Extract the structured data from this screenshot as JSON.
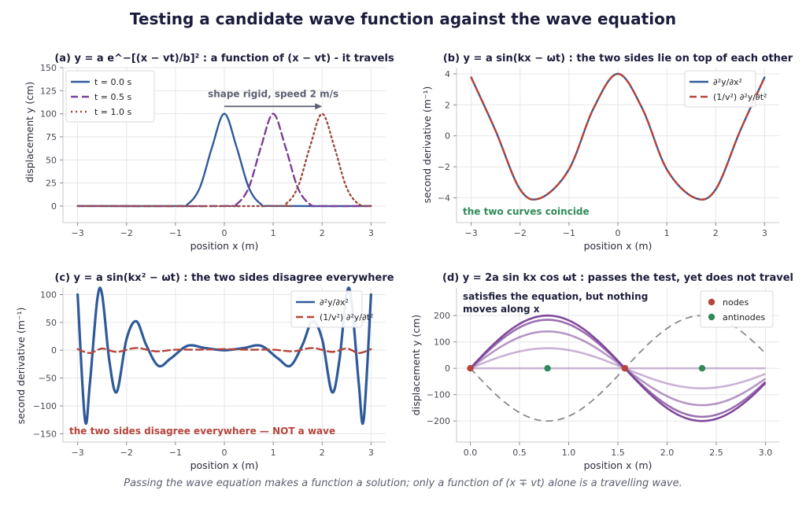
{
  "title": "Testing a candidate wave function against the wave equation",
  "footer": "Passing the wave equation makes a function a solution; only a function of (x ∓ vt) alone is a travelling wave.",
  "colors": {
    "blue": "#2f5a9a",
    "purple": "#7a3f96",
    "brown": "#9b4a3c",
    "red": "#b5443a",
    "green": "#2e8b57",
    "gray": "#8a8a8a",
    "grid": "#e6e6ea"
  },
  "chart_data": [
    {
      "id": "a",
      "type": "line",
      "title": "(a)  y = a e^−[(x − vt)/b]² : a function of (x − vt) - it travels",
      "xlabel": "position x (m)",
      "ylabel": "displacement y (cm)",
      "xlim": [
        -3.3,
        3.3
      ],
      "ylim": [
        -18,
        150
      ],
      "xticks": [
        -3,
        -2,
        -1,
        0,
        1,
        2,
        3
      ],
      "yticks": [
        0,
        25,
        50,
        75,
        100,
        125,
        150
      ],
      "grid": true,
      "legend_position": "top-left",
      "series": [
        {
          "name": "t = 0.0 s",
          "style": "solid",
          "color": "#2f5a9a",
          "x": [
            -3,
            -1,
            -0.75,
            -0.5,
            -0.25,
            0,
            0.25,
            0.5,
            0.75,
            1,
            3
          ],
          "y": [
            0,
            0,
            2,
            20,
            64,
            100,
            64,
            20,
            2,
            0,
            0
          ]
        },
        {
          "name": "t = 0.5 s",
          "style": "dashed",
          "color": "#7a3f96",
          "x": [
            -3,
            0,
            0.25,
            0.5,
            0.75,
            1,
            1.25,
            1.5,
            1.75,
            2,
            3
          ],
          "y": [
            0,
            0,
            2,
            20,
            64,
            100,
            64,
            20,
            2,
            0,
            0
          ]
        },
        {
          "name": "t = 1.0 s",
          "style": "dotted",
          "color": "#9b4a3c",
          "x": [
            -3,
            1,
            1.25,
            1.5,
            1.75,
            2,
            2.25,
            2.5,
            2.75,
            3
          ],
          "y": [
            0,
            0,
            2,
            20,
            64,
            100,
            64,
            20,
            2,
            0
          ]
        }
      ],
      "annotations": [
        {
          "text": "shape rigid, speed 2 m/s",
          "arrow_from_x": 0,
          "arrow_to_x": 2,
          "y": 108
        }
      ]
    },
    {
      "id": "b",
      "type": "line",
      "title": "(b)  y = a sin(kx − ωt) : the two sides lie on top of each other",
      "xlabel": "position x (m)",
      "ylabel": "second derivative (m⁻¹)",
      "xlim": [
        -3.3,
        3.3
      ],
      "ylim": [
        -5.6,
        4.4
      ],
      "xticks": [
        -3,
        -2,
        -1,
        0,
        1,
        2,
        3
      ],
      "yticks": [
        -4,
        -2,
        0,
        2,
        4
      ],
      "grid": true,
      "legend_position": "top-right",
      "series": [
        {
          "name": "∂²y/∂x²",
          "style": "solid",
          "color": "#2f5a9a",
          "x": [
            -3,
            -2.5,
            -2,
            -1.57,
            -1,
            -0.5,
            0,
            0.5,
            1,
            1.57,
            2,
            2.5,
            3
          ],
          "y": [
            3.77,
            0.32,
            -3.46,
            -4.0,
            -2.16,
            1.76,
            4.0,
            1.76,
            -2.16,
            -4.0,
            -3.46,
            0.32,
            3.77
          ]
        },
        {
          "name": "(1/v²) ∂²y/∂t²",
          "style": "dashed",
          "color": "#b5443a",
          "x": [
            -3,
            -2.5,
            -2,
            -1.57,
            -1,
            -0.5,
            0,
            0.5,
            1,
            1.57,
            2,
            2.5,
            3
          ],
          "y": [
            3.77,
            0.32,
            -3.46,
            -4.0,
            -2.16,
            1.76,
            4.0,
            1.76,
            -2.16,
            -4.0,
            -3.46,
            0.32,
            3.77
          ]
        }
      ],
      "annotations": [
        {
          "text": "the two curves coincide"
        }
      ]
    },
    {
      "id": "c",
      "type": "line",
      "title": "(c)  y = a sin(kx² − ωt) : the two sides disagree everywhere",
      "xlabel": "position x (m)",
      "ylabel": "second derivative (m⁻¹)",
      "xlim": [
        -3.3,
        3.3
      ],
      "ylim": [
        -165,
        112
      ],
      "xticks": [
        -3,
        -2,
        -1,
        0,
        1,
        2,
        3
      ],
      "yticks": [
        -150,
        -100,
        -50,
        0,
        50,
        100
      ],
      "grid": true,
      "legend_position": "top-right",
      "series": [
        {
          "name": "∂²y/∂x²",
          "style": "solid",
          "color": "#2f5a9a",
          "x": [
            -3,
            -2.85,
            -2.75,
            -2.6,
            -2.5,
            -2.35,
            -2.2,
            -2.0,
            -1.8,
            -1.6,
            -1.35,
            -1.1,
            -0.75,
            -0.4,
            0,
            0.4,
            0.75,
            1.1,
            1.35,
            1.6,
            1.8,
            2.0,
            2.2,
            2.35,
            2.5,
            2.6,
            2.75,
            2.85,
            3
          ],
          "y": [
            100,
            -125,
            -60,
            90,
            100,
            -20,
            -75,
            20,
            52,
            10,
            -28,
            -15,
            8,
            4,
            0,
            4,
            8,
            -15,
            -28,
            10,
            52,
            20,
            -75,
            -20,
            100,
            90,
            -60,
            -125,
            100
          ]
        },
        {
          "name": "(1/v²) ∂²y/∂t²",
          "style": "dashed",
          "color": "#b5443a",
          "x": [
            -3,
            -2.75,
            -2.5,
            -2.2,
            -1.8,
            -1.4,
            -1.0,
            -0.5,
            0,
            0.5,
            1.0,
            1.4,
            1.8,
            2.2,
            2.5,
            2.75,
            3
          ],
          "y": [
            2,
            -5,
            3,
            -3,
            4,
            -2,
            1,
            1,
            2,
            1,
            1,
            -2,
            4,
            -3,
            3,
            -5,
            2
          ]
        }
      ],
      "annotations": [
        {
          "text": "the two sides disagree everywhere — NOT a wave"
        }
      ]
    },
    {
      "id": "d",
      "type": "line",
      "title": "(d)  y = 2a sin kx cos ωt : passes the test, yet does not travel",
      "xlabel": "position x (m)",
      "ylabel": "displacement y (cm)",
      "xlim": [
        -0.14,
        3.14
      ],
      "ylim": [
        -280,
        305
      ],
      "xticks": [
        0.0,
        0.5,
        1.0,
        1.5,
        2.0,
        2.5,
        3.0
      ],
      "yticks": [
        -200,
        -100,
        0,
        100,
        200
      ],
      "grid": true,
      "legend_position": "top-right",
      "standing_wave": {
        "amplitude": 200,
        "snapshot_factors": [
          1.0,
          0.92,
          0.7,
          0.38,
          0.0
        ],
        "comparison_factor": -1.0
      },
      "points": [
        {
          "name": "nodes",
          "color": "#b5443a",
          "x": [
            0,
            1.5708
          ],
          "y": [
            0,
            0
          ]
        },
        {
          "name": "antinodes",
          "color": "#2e8b57",
          "x": [
            0.785,
            2.356
          ],
          "y": [
            0,
            0
          ]
        }
      ],
      "annotations": [
        {
          "text": "satisfies the equation, but nothing"
        },
        {
          "text": "moves along x"
        }
      ]
    }
  ]
}
